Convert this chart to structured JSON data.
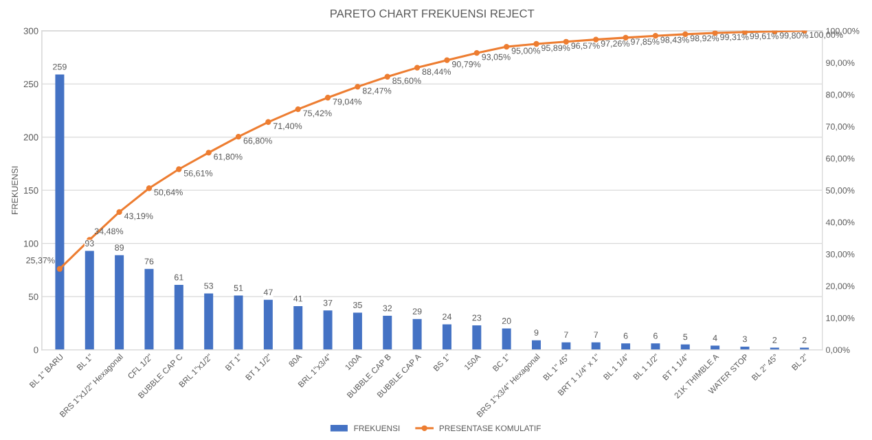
{
  "chart_data": {
    "type": "bar",
    "title": "PARETO CHART FREKUENSI REJECT",
    "ylabel": "FREKUENSI",
    "categories": [
      "BL 1\" BARU",
      "BL 1\"",
      "BRS 1\"x1/2\" Hexagonal",
      "CFL 1/2\"",
      "BUBBLE CAP C",
      "BRL 1\"x1/2\"",
      "BT 1\"",
      "BT 1 1/2\"",
      "80A",
      "BRL 1\"x3/4\"",
      "100A",
      "BUBBLE CAP B",
      "BUBBLE CAP A",
      "BS 1\"",
      "150A",
      "BC 1\"",
      "BRS 1\"x3/4\" Hexagonal",
      "BL 1\" 45°",
      "BRT 1 1/4\" x 1\"",
      "BL 1 1/4\"",
      "BL 1 1/2\"",
      "BT 1 1/4\"",
      "21K THIMBLE A",
      "WATER STOP",
      "BL 2\" 45°",
      "BL 2\""
    ],
    "series": [
      {
        "name": "FREKUENSI",
        "color": "#4472c4",
        "values": [
          259,
          93,
          89,
          76,
          61,
          53,
          51,
          47,
          41,
          37,
          35,
          32,
          29,
          24,
          23,
          20,
          9,
          7,
          7,
          6,
          6,
          5,
          4,
          3,
          2,
          2
        ],
        "value_labels": [
          "259",
          "93",
          "89",
          "76",
          "61",
          "53",
          "51",
          "47",
          "41",
          "37",
          "35",
          "32",
          "29",
          "24",
          "23",
          "20",
          "9",
          "7",
          "7",
          "6",
          "6",
          "5",
          "4",
          "3",
          "2",
          "2"
        ]
      },
      {
        "name": "PRESENTASE KOMULATIF",
        "type": "line",
        "axis": "y2",
        "color": "#ed7d31",
        "marker": "circle",
        "values": [
          25.37,
          34.48,
          43.19,
          50.64,
          56.61,
          61.8,
          66.8,
          71.4,
          75.42,
          79.04,
          82.47,
          85.6,
          88.44,
          90.79,
          93.05,
          95.0,
          95.89,
          96.57,
          97.26,
          97.85,
          98.43,
          98.92,
          99.31,
          99.61,
          99.8,
          100.0
        ],
        "value_labels": [
          "25,37%",
          "34,48%",
          "43,19%",
          "50,64%",
          "56,61%",
          "61,80%",
          "66,80%",
          "71,40%",
          "75,42%",
          "79,04%",
          "82,47%",
          "85,60%",
          "88,44%",
          "90,79%",
          "93,05%",
          "95,00%",
          "95,89%",
          "96,57%",
          "97,26%",
          "97,85%",
          "98,43%",
          "98,92%",
          "99,31%",
          "99,61%",
          "99,80%",
          "100,00%"
        ]
      }
    ],
    "ylim": [
      0,
      300
    ],
    "yticks": [
      0,
      50,
      100,
      150,
      200,
      250,
      300
    ],
    "y2lim": [
      0,
      100
    ],
    "y2ticks": [
      {
        "value": 0,
        "label": "0,00%"
      },
      {
        "value": 10,
        "label": "10,00%"
      },
      {
        "value": 20,
        "label": "20,00%"
      },
      {
        "value": 30,
        "label": "30,00%"
      },
      {
        "value": 40,
        "label": "40,00%"
      },
      {
        "value": 50,
        "label": "50,00%"
      },
      {
        "value": 60,
        "label": "60,00%"
      },
      {
        "value": 70,
        "label": "70,00%"
      },
      {
        "value": 80,
        "label": "80,00%"
      },
      {
        "value": 90,
        "label": "90,00%"
      },
      {
        "value": 100,
        "label": "100,00%"
      }
    ],
    "grid": "y",
    "legend": "bottom"
  }
}
